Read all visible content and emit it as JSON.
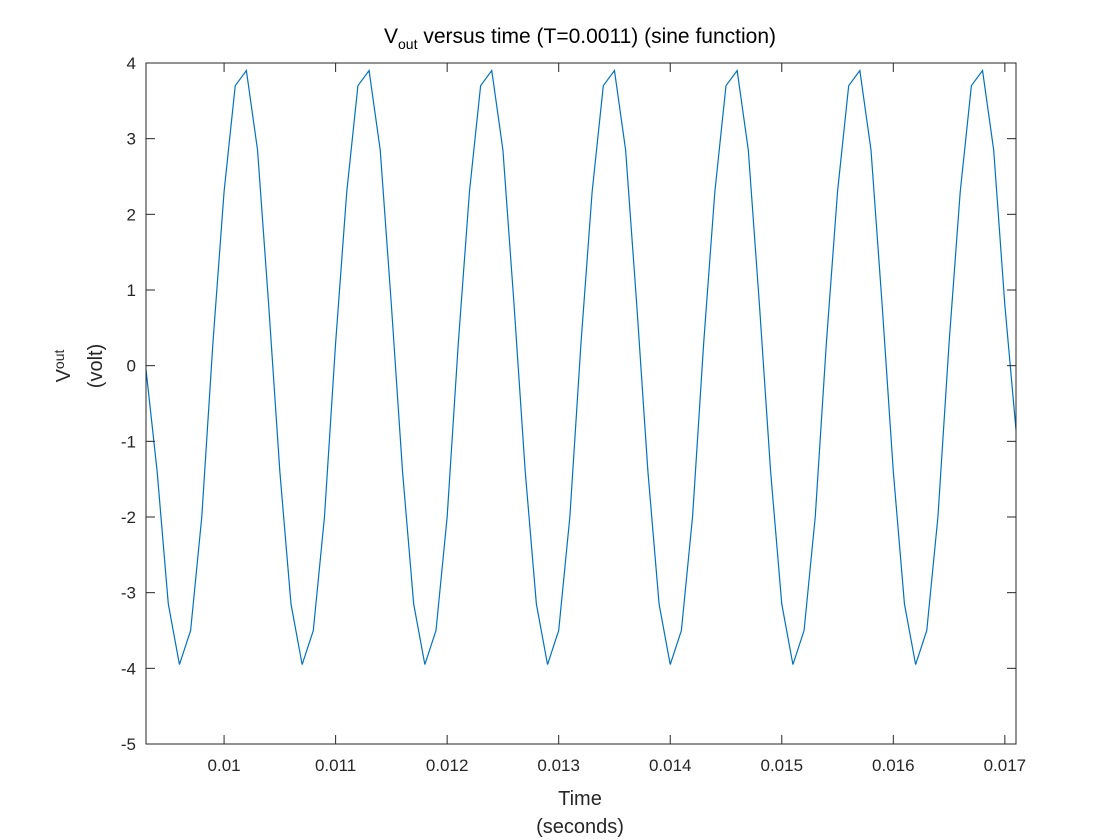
{
  "chart_data": {
    "type": "line",
    "title": {
      "main": "V",
      "sub": "out",
      "rest": " versus time (T=0.0011) (sine function)"
    },
    "xlabel": {
      "line1": "Time",
      "line2": "(seconds)"
    },
    "ylabel": {
      "main": "V",
      "sub": "out",
      "line2": "(volt)"
    },
    "xlim": [
      0.0093,
      0.0171
    ],
    "ylim": [
      -5,
      4
    ],
    "xticks": [
      0.01,
      0.011,
      0.012,
      0.013,
      0.014,
      0.015,
      0.016,
      0.017
    ],
    "xtick_labels": [
      "0.01",
      "0.011",
      "0.012",
      "0.013",
      "0.014",
      "0.015",
      "0.016",
      "0.017"
    ],
    "yticks": [
      -5,
      -4,
      -3,
      -2,
      -1,
      0,
      1,
      2,
      3,
      4
    ],
    "ytick_labels": [
      "-5",
      "-4",
      "-3",
      "-2",
      "-1",
      "0",
      "1",
      "2",
      "3",
      "4"
    ],
    "grid": false,
    "box": true,
    "line_color": "#0072BD",
    "series": [
      {
        "x": [
          0.0093,
          0.0094,
          0.0095,
          0.0096,
          0.0097,
          0.0098,
          0.0099,
          0.01,
          0.0101,
          0.0102,
          0.0103,
          0.0104,
          0.0105,
          0.0106,
          0.0107,
          0.0108,
          0.0109,
          0.011,
          0.0111,
          0.0112,
          0.0113,
          0.0114,
          0.0115,
          0.0116,
          0.0117,
          0.0118,
          0.0119,
          0.012,
          0.0121,
          0.0122,
          0.0123,
          0.0124,
          0.0125,
          0.0126,
          0.0127,
          0.0128,
          0.0129,
          0.013,
          0.0131,
          0.0132,
          0.0133,
          0.0134,
          0.0135,
          0.0136,
          0.0137,
          0.0138,
          0.0139,
          0.014,
          0.0141,
          0.0142,
          0.0143,
          0.0144,
          0.0145,
          0.0146,
          0.0147,
          0.0148,
          0.0149,
          0.015,
          0.0151,
          0.0152,
          0.0153,
          0.0154,
          0.0155,
          0.0156,
          0.0157,
          0.0158,
          0.0159,
          0.016,
          0.0161,
          0.0162,
          0.0163,
          0.0164,
          0.0165,
          0.0166,
          0.0167,
          0.0168,
          0.0169,
          0.017,
          0.0171
        ],
        "y": [
          -0.05,
          -1.4,
          -3.15,
          -3.95,
          -3.5,
          -2.0,
          0.3,
          2.3,
          3.7,
          3.9,
          2.85,
          0.8,
          -1.4,
          -3.15,
          -3.95,
          -3.5,
          -2.0,
          0.3,
          2.3,
          3.7,
          3.9,
          2.85,
          0.8,
          -1.4,
          -3.15,
          -3.95,
          -3.5,
          -2.0,
          0.3,
          2.3,
          3.7,
          3.9,
          2.85,
          0.8,
          -1.4,
          -3.15,
          -3.95,
          -3.5,
          -2.0,
          0.3,
          2.3,
          3.7,
          3.9,
          2.85,
          0.8,
          -1.4,
          -3.15,
          -3.95,
          -3.5,
          -2.0,
          0.3,
          2.3,
          3.7,
          3.9,
          2.85,
          0.8,
          -1.4,
          -3.15,
          -3.95,
          -3.5,
          -2.0,
          0.3,
          2.3,
          3.7,
          3.9,
          2.85,
          0.8,
          -1.4,
          -3.15,
          -3.95,
          -3.5,
          -2.0,
          0.3,
          2.3,
          3.7,
          3.9,
          2.85,
          0.8,
          -0.85
        ]
      }
    ]
  }
}
